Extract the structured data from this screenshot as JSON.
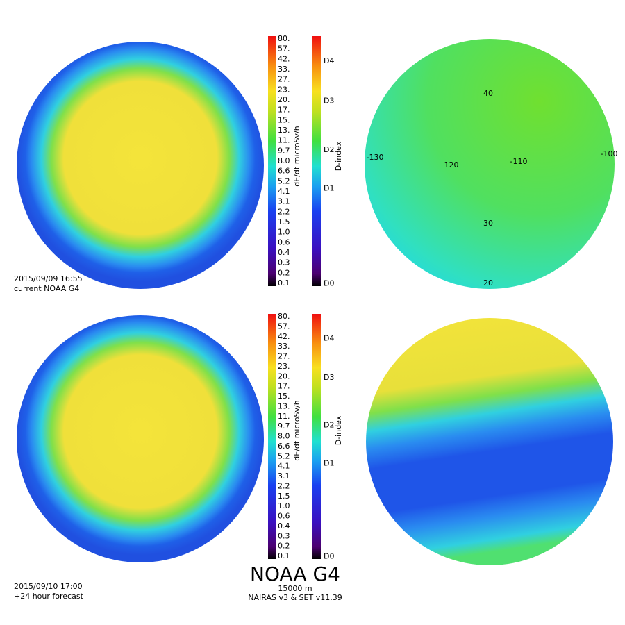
{
  "panels": [
    {
      "timestamp": "2015/09/09 16:55",
      "caption": "current NOAA G4",
      "dose_label": "dE/dt microSv/h",
      "dindex_label": "D-index"
    },
    {
      "timestamp": "2015/09/10 17:00",
      "caption": "+24 hour forecast",
      "dose_label": "dE/dt microSv/h",
      "dindex_label": "D-index"
    }
  ],
  "dose_scale": [
    "80.",
    "57.",
    "42.",
    "33.",
    "27.",
    "23.",
    "20.",
    "17.",
    "15.",
    "13.",
    "11.",
    "9.7",
    "8.0",
    "6.6",
    "5.2",
    "4.1",
    "3.1",
    "2.2",
    "1.5",
    "1.0",
    "0.6",
    "0.4",
    "0.3",
    "0.2",
    "0.1"
  ],
  "dindex_scale": [
    "D0",
    "D1",
    "D2",
    "D3",
    "D4"
  ],
  "map_labels": [
    "40",
    "-130",
    "120",
    "-110",
    "-100",
    "30",
    "20"
  ],
  "footer": {
    "title": "NOAA G4",
    "altitude": "15000 m",
    "versions": "NAIRAS v3 & SET v11.39"
  }
}
